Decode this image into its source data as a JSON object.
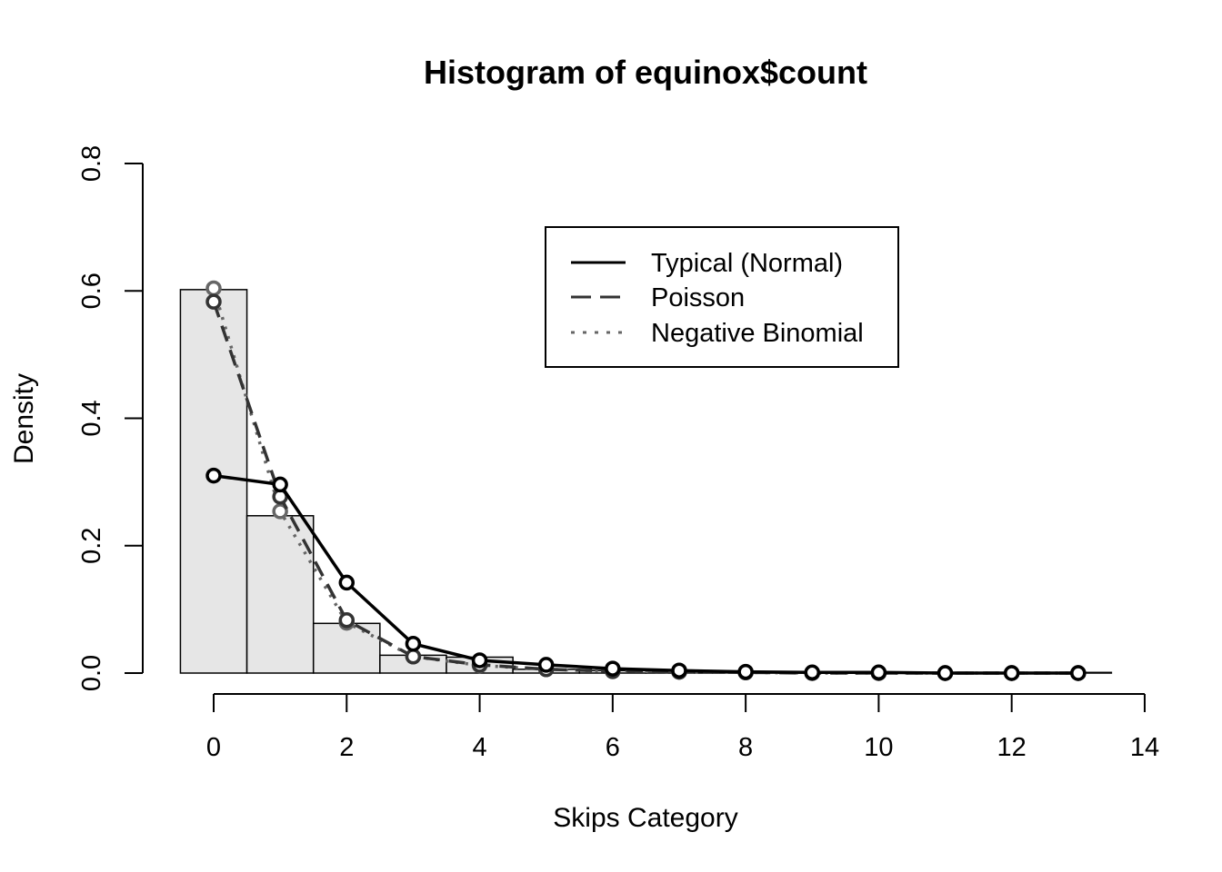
{
  "chart_data": {
    "type": "bar",
    "title": "Histogram of equinox$count",
    "xlabel": "Skips Category",
    "ylabel": "Density",
    "xlim": [
      -0.5,
      14
    ],
    "ylim": [
      0,
      0.8
    ],
    "xticks": [
      "0",
      "2",
      "4",
      "6",
      "8",
      "10",
      "12",
      "14"
    ],
    "yticks": [
      "0.0",
      "0.2",
      "0.4",
      "0.6",
      "0.8"
    ],
    "bins": [
      {
        "from": -0.5,
        "to": 0.5,
        "density": 0.602
      },
      {
        "from": 0.5,
        "to": 1.5,
        "density": 0.247
      },
      {
        "from": 1.5,
        "to": 2.5,
        "density": 0.078
      },
      {
        "from": 2.5,
        "to": 3.5,
        "density": 0.028
      },
      {
        "from": 3.5,
        "to": 4.5,
        "density": 0.025
      },
      {
        "from": 4.5,
        "to": 5.5,
        "density": 0.006
      },
      {
        "from": 5.5,
        "to": 6.5,
        "density": 0.004
      },
      {
        "from": 6.5,
        "to": 7.5,
        "density": 0.003
      },
      {
        "from": 7.5,
        "to": 8.5,
        "density": 0.001
      },
      {
        "from": 8.5,
        "to": 9.5,
        "density": 0.001
      },
      {
        "from": 9.5,
        "to": 10.5,
        "density": 0.001
      },
      {
        "from": 10.5,
        "to": 11.5,
        "density": 0.0
      },
      {
        "from": 11.5,
        "to": 12.5,
        "density": 0.0
      },
      {
        "from": 12.5,
        "to": 13.5,
        "density": 0.001
      }
    ],
    "bar_color": "#e6e6e6",
    "legend": {
      "position": "top-right",
      "entries": [
        {
          "label": "Typical (Normal)",
          "style": "solid",
          "color": "#000000"
        },
        {
          "label": "Poisson",
          "style": "dashed",
          "color": "#333333"
        },
        {
          "label": "Negative Binomial",
          "style": "dotted",
          "color": "#666666"
        }
      ]
    },
    "series": [
      {
        "name": "Typical (Normal)",
        "color": "#000000",
        "style": "solid",
        "x": [
          0,
          1,
          2,
          3,
          4,
          5,
          6,
          7,
          8,
          9,
          10,
          11,
          12,
          13
        ],
        "values": [
          0.31,
          0.296,
          0.142,
          0.046,
          0.02,
          0.013,
          0.007,
          0.004,
          0.002,
          0.001,
          0.001,
          0.0,
          0.0,
          0.0
        ]
      },
      {
        "name": "Poisson",
        "color": "#333333",
        "style": "dashed",
        "x": [
          0,
          1,
          2,
          3,
          4,
          5,
          6,
          7,
          8,
          9,
          10,
          11,
          12,
          13
        ],
        "values": [
          0.583,
          0.277,
          0.083,
          0.026,
          0.013,
          0.006,
          0.003,
          0.002,
          0.001,
          0.0,
          0.0,
          0.0,
          0.0,
          0.0
        ]
      },
      {
        "name": "Negative Binomial",
        "color": "#666666",
        "style": "dotted",
        "x": [
          0,
          1,
          2,
          3,
          4,
          5,
          6,
          7,
          8,
          9,
          10,
          11,
          12,
          13
        ],
        "values": [
          0.604,
          0.254,
          0.079,
          0.026,
          0.012,
          0.006,
          0.003,
          0.002,
          0.001,
          0.0,
          0.0,
          0.0,
          0.0,
          0.0
        ]
      }
    ]
  }
}
